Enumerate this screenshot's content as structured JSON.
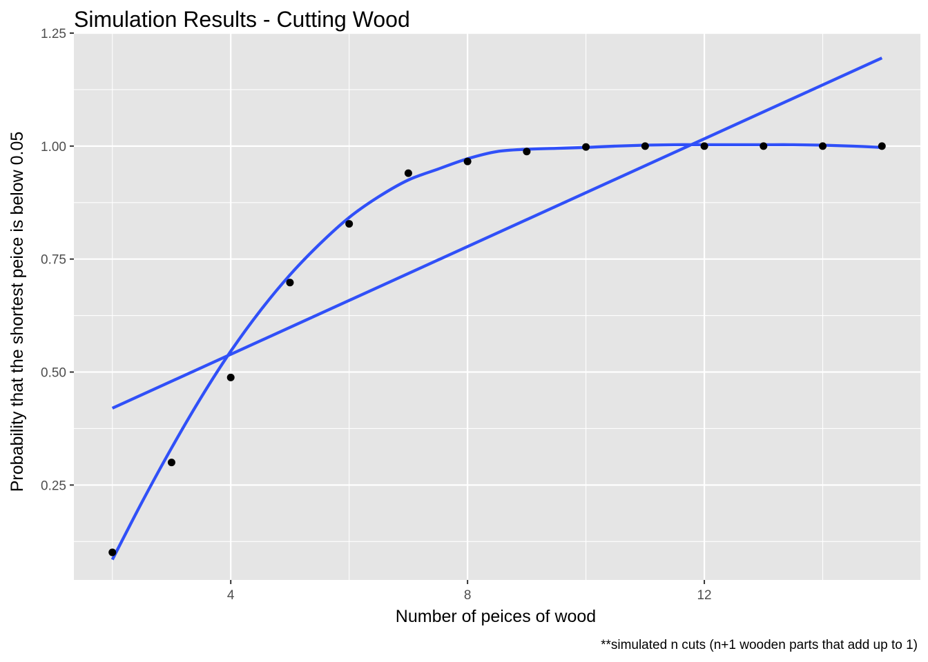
{
  "chart_data": {
    "type": "scatter",
    "title": "Simulation Results - Cutting Wood",
    "xlabel": "Number of peices of wood",
    "ylabel": "Probability that the shortest peice is below 0.05",
    "caption": "**simulated n cuts (n+1 wooden parts that add up to 1)",
    "xlim": [
      1.35,
      15.65
    ],
    "ylim": [
      0.04,
      1.25
    ],
    "x_ticks": [
      4,
      8,
      12
    ],
    "x_tick_labels": [
      "4",
      "8",
      "12"
    ],
    "y_ticks": [
      0.25,
      0.5,
      0.75,
      1.0,
      1.25
    ],
    "y_tick_labels": [
      "0.25",
      "0.50",
      "0.75",
      "1.00",
      "1.25"
    ],
    "grid": true,
    "background_color": "#E5E5E5",
    "grid_color": "#FFFFFF",
    "point_color": "#000000",
    "line_color": "#3050F8",
    "points": {
      "x": [
        2,
        3,
        4,
        5,
        6,
        7,
        8,
        9,
        10,
        11,
        12,
        13,
        14,
        15
      ],
      "y": [
        0.101,
        0.3,
        0.488,
        0.698,
        0.828,
        0.94,
        0.966,
        0.988,
        0.998,
        1.0,
        1.0,
        1.0,
        1.0,
        1.0
      ]
    },
    "series": [
      {
        "type": "smooth",
        "x": [
          2,
          2.5,
          3,
          3.5,
          4,
          4.5,
          5,
          5.5,
          6,
          6.5,
          7,
          7.5,
          8,
          8.5,
          9,
          9.5,
          10,
          10.5,
          11,
          11.5,
          12,
          12.5,
          13,
          13.5,
          14,
          14.5,
          15
        ],
        "y": [
          0.085,
          0.212,
          0.332,
          0.444,
          0.546,
          0.636,
          0.715,
          0.783,
          0.842,
          0.888,
          0.925,
          0.949,
          0.972,
          0.988,
          0.993,
          0.995,
          0.997,
          1.0,
          1.002,
          1.003,
          1.003,
          1.003,
          1.003,
          1.003,
          1.002,
          1.0,
          0.997
        ]
      },
      {
        "type": "linear",
        "x": [
          2,
          15
        ],
        "y": [
          0.42,
          1.195
        ]
      }
    ]
  }
}
